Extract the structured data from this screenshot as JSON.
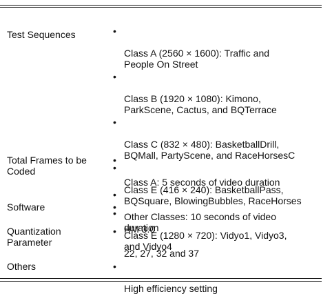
{
  "rows": [
    {
      "label": "Test Sequences",
      "items": [
        "Class A (2560 × 1600): Traffic and\nPeople On Street",
        "Class B (1920 × 1080): Kimono,\nParkScene, Cactus, and BQTerrace",
        "Class C (832 × 480): BasketballDrill,\nBQMall, PartyScene, and RaceHorsesC",
        "Class E (416 × 240): BasketballPass,\nBQSquare, BlowingBubbles, RaceHorses",
        "Class E (1280 × 720): Vidyo1, Vidyo3,\nand Vidyo4"
      ]
    },
    {
      "label": "Total Frames to be\nCoded",
      "items": [
        "Class A: 5 seconds of video duration",
        "Other Classes: 10 seconds of video\nduration"
      ]
    },
    {
      "label": "Software",
      "items": [
        "HM 3.0"
      ]
    },
    {
      "label": "Quantization\nParameter",
      "items": [
        "22, 27, 32 and 37"
      ]
    },
    {
      "label": "Others",
      "items": [
        "High efficiency setting"
      ]
    }
  ],
  "bullet_symbol": "•"
}
